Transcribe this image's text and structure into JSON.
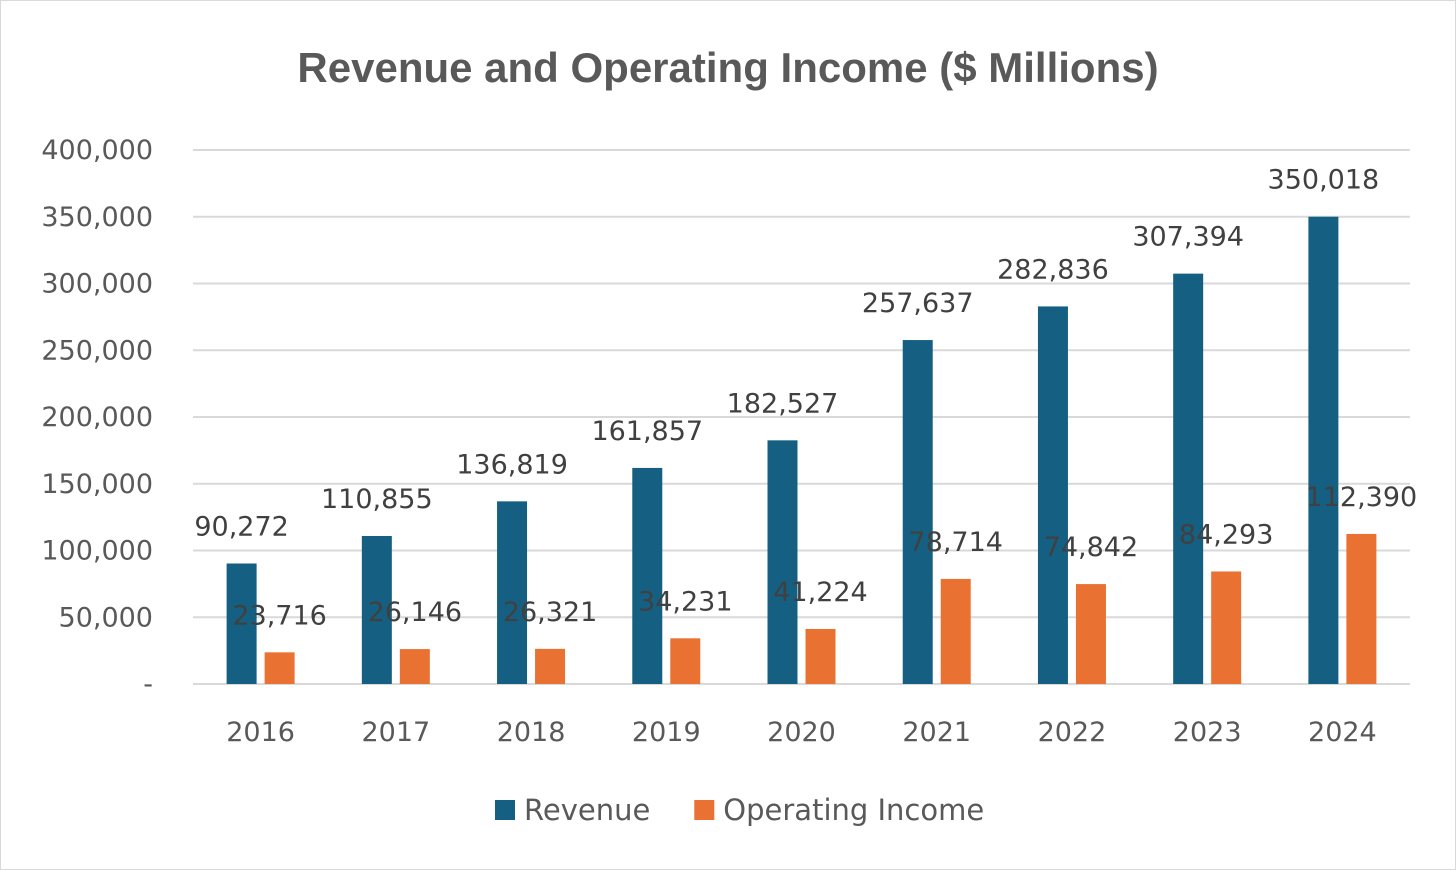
{
  "chart_data": {
    "type": "bar",
    "title": "Revenue and Operating Income ($ Millions)",
    "xlabel": "",
    "ylabel": "",
    "categories": [
      "2016",
      "2017",
      "2018",
      "2019",
      "2020",
      "2021",
      "2022",
      "2023",
      "2024"
    ],
    "series": [
      {
        "name": "Revenue",
        "color": "#156082",
        "values": [
          90272,
          110855,
          136819,
          161857,
          182527,
          257637,
          282836,
          307394,
          350018
        ],
        "labels": [
          "90,272",
          "110,855",
          "136,819",
          "161,857",
          "182,527",
          "257,637",
          "282,836",
          "307,394",
          "350,018"
        ]
      },
      {
        "name": "Operating Income",
        "color": "#E97132",
        "values": [
          23716,
          26146,
          26321,
          34231,
          41224,
          78714,
          74842,
          84293,
          112390
        ],
        "labels": [
          "23,716",
          "26,146",
          "26,321",
          "34,231",
          "41,224",
          "78,714",
          "74,842",
          "84,293",
          "112,390"
        ]
      }
    ],
    "ylim": [
      0,
      400000
    ],
    "yticks": [
      0,
      50000,
      100000,
      150000,
      200000,
      250000,
      300000,
      350000,
      400000
    ],
    "ytick_labels": [
      "-",
      "50,000",
      "100,000",
      "150,000",
      "200,000",
      "250,000",
      "300,000",
      "350,000",
      "400,000"
    ],
    "grid": true,
    "legend_position": "bottom"
  }
}
